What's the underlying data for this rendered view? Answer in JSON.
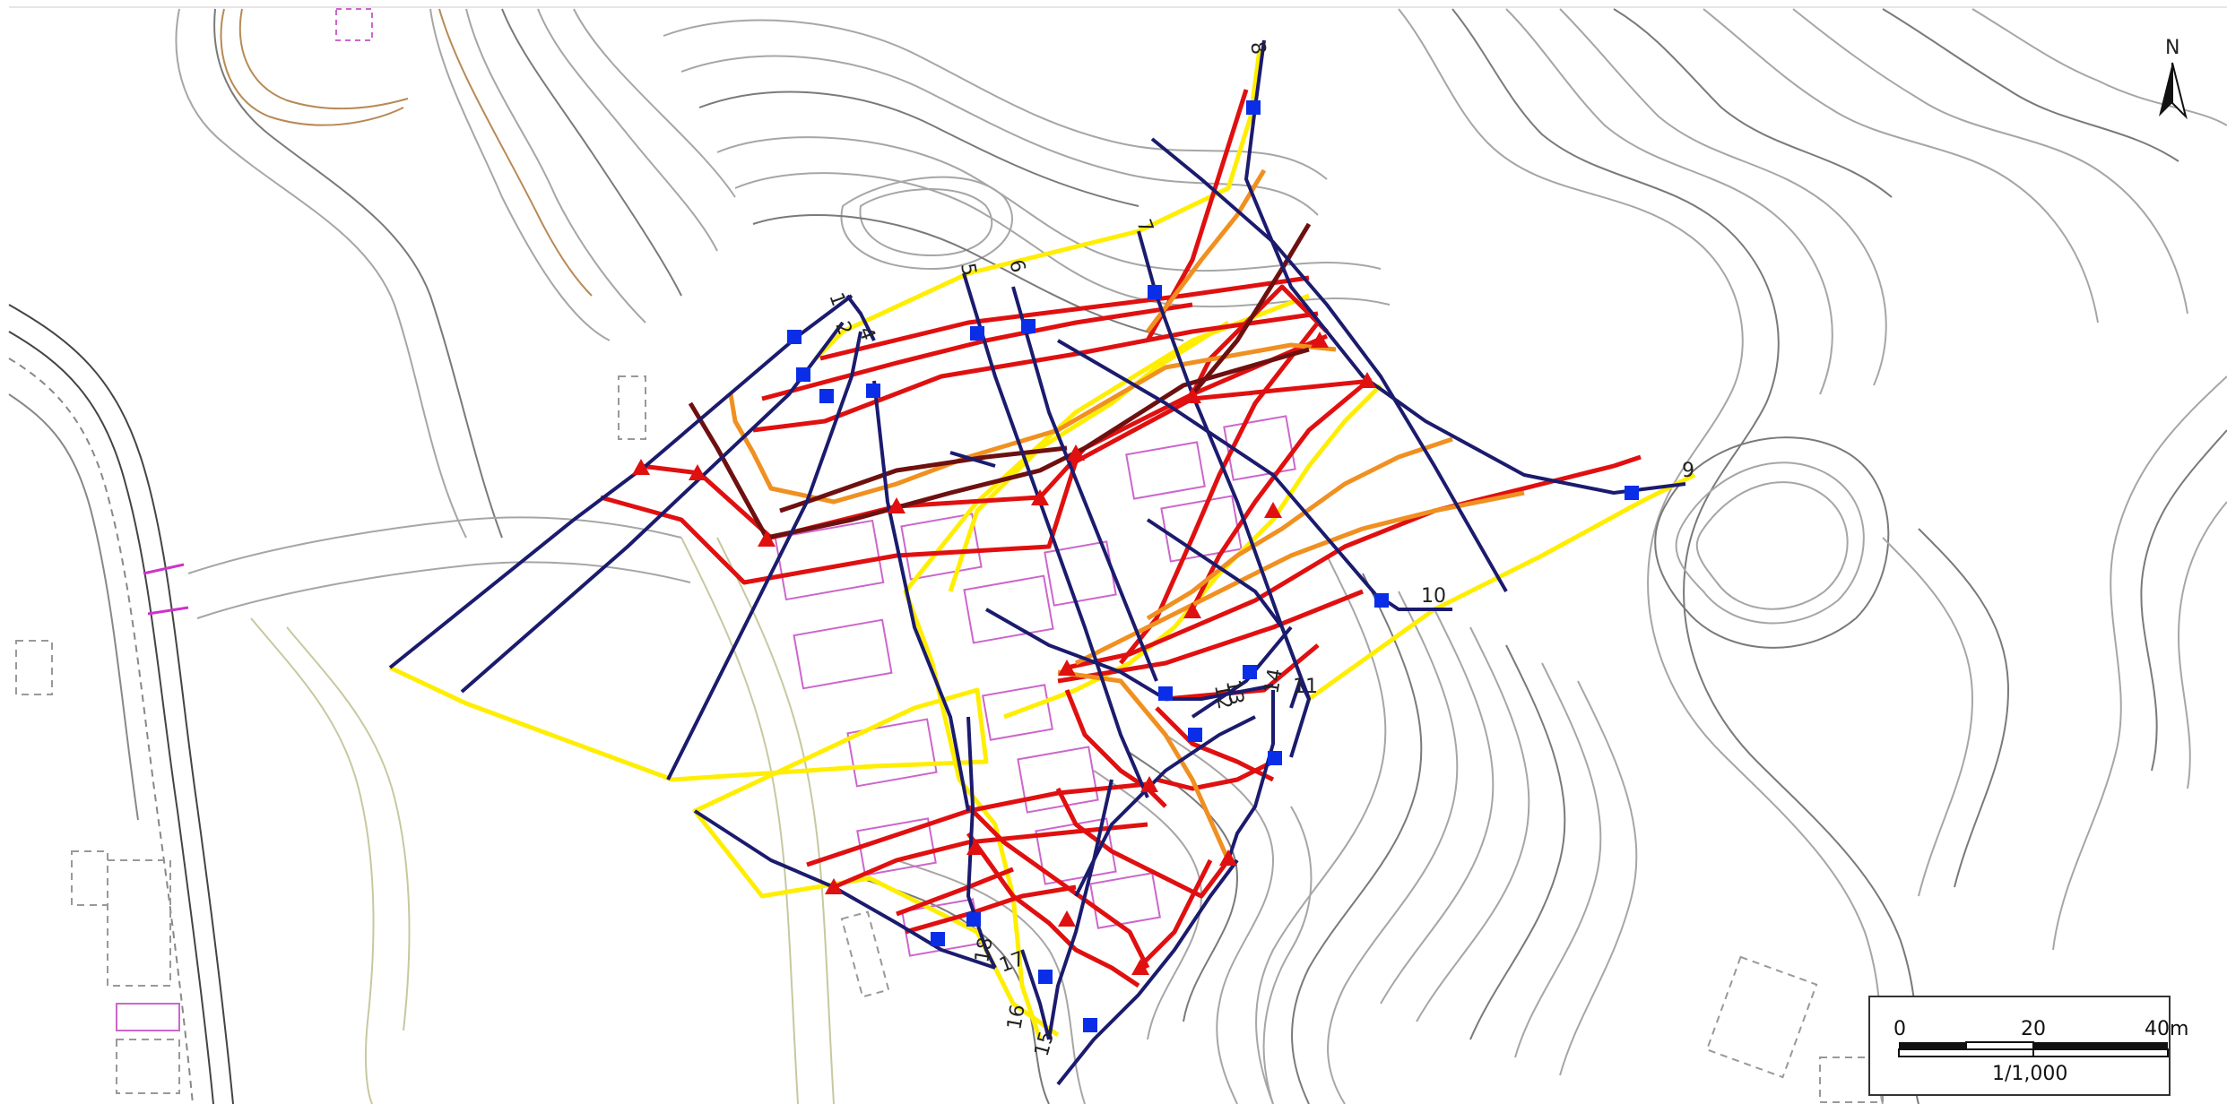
{
  "map": {
    "north_label": "N",
    "scale_bar": {
      "zero_label": "0",
      "mid_label": "20",
      "end_label": "40m",
      "ratio_label": "1/1,000"
    },
    "section_labels": [
      "1",
      "2",
      "4",
      "5",
      "6",
      "7",
      "8",
      "9",
      "10",
      "11",
      "12",
      "13",
      "14",
      "15",
      "16",
      "17",
      "18"
    ],
    "legend_colors": {
      "survey_line": "#1b1b6e",
      "boundary_yellow": "#ffee00",
      "line_red": "#e01010",
      "line_orange": "#f09020",
      "line_dark_red": "#6e1010",
      "marker_square": "#0a2ee8",
      "marker_triangle": "#e01010",
      "building_outline": "#cc66cc",
      "contour": "#9a9a9a"
    },
    "icons": {
      "station_marker": "blue-square",
      "point_marker": "red-triangle",
      "north_arrow": "north-arrow"
    }
  }
}
